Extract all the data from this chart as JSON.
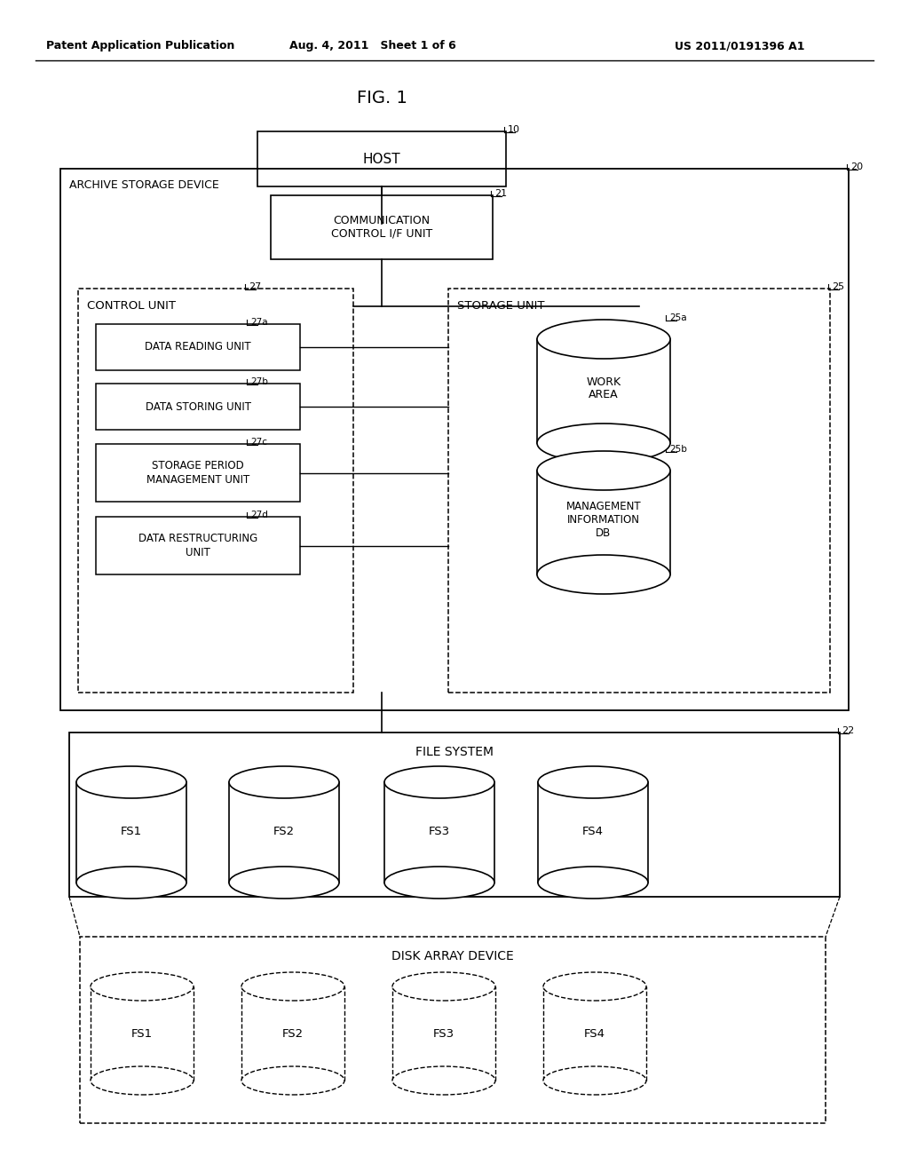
{
  "bg_color": "#ffffff",
  "header_left": "Patent Application Publication",
  "header_mid": "Aug. 4, 2011   Sheet 1 of 6",
  "header_right": "US 2011/0191396 A1",
  "fig_label": "FIG. 1",
  "diagram": {
    "host_label": "HOST",
    "host_ref": "10",
    "archive_label": "ARCHIVE STORAGE DEVICE",
    "archive_ref": "20",
    "comm_label": "COMMUNICATION\nCONTROL I/F UNIT",
    "comm_ref": "21",
    "control_label": "CONTROL UNIT",
    "control_ref": "27",
    "storage_label": "STORAGE UNIT",
    "storage_ref": "25",
    "unit_labels": [
      "DATA READING UNIT",
      "DATA STORING UNIT",
      "STORAGE PERIOD\nMANAGEMENT UNIT",
      "DATA RESTRUCTURING\nUNIT"
    ],
    "unit_refs": [
      "27a",
      "27b",
      "27c",
      "27d"
    ],
    "cyl_storage_labels": [
      "WORK\nAREA",
      "MANAGEMENT\nINFORMATION\nDB"
    ],
    "cyl_storage_refs": [
      "25a",
      "25b"
    ],
    "filesystem_label": "FILE SYSTEM",
    "filesystem_ref": "22",
    "fs_cylinders": [
      "FS1",
      "FS2",
      "FS3",
      "FS4"
    ],
    "disk_array_label": "DISK ARRAY DEVICE",
    "disk_array_cylinders": [
      "FS1",
      "FS2",
      "FS3",
      "FS4"
    ]
  }
}
